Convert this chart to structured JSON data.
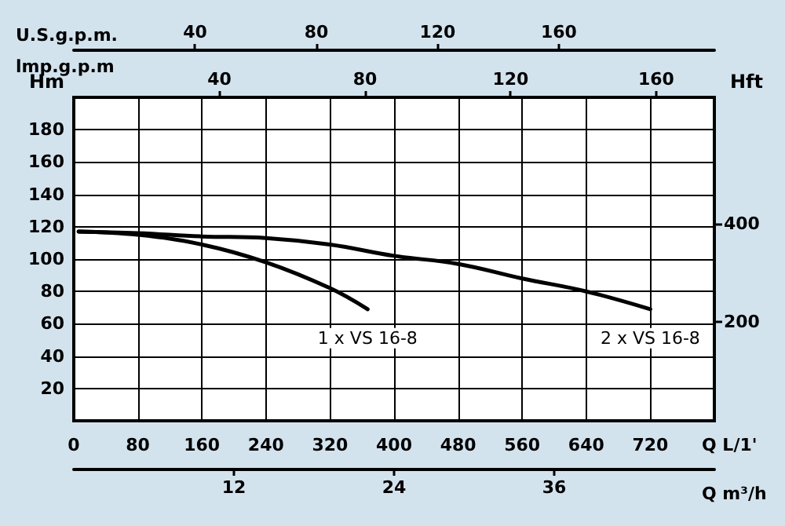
{
  "chart_data": {
    "type": "line",
    "xlabel": "Q L/1'",
    "ylabel": "Hm",
    "y2label": "Hft",
    "x2label": "U.S.g.p.m.",
    "xlim": [
      0,
      800
    ],
    "xticks": [
      {
        "value": 0,
        "label": "0"
      },
      80,
      160,
      240,
      320,
      400,
      480,
      560,
      640,
      720
    ],
    "ylim": [
      0,
      200
    ],
    "yticks": [
      20,
      40,
      60,
      80,
      100,
      120,
      140,
      160,
      180
    ],
    "y2lim": [
      0,
      656.2
    ],
    "y2ticks": [
      200,
      400
    ],
    "x2lim": [
      0,
      211.3
    ],
    "x2ticks": [
      40,
      80,
      120,
      160
    ],
    "annotations": [
      "lmp.g.p.m",
      "40",
      "80",
      "120",
      "160",
      "Q m³/h",
      "12",
      "24",
      "36"
    ],
    "grid": true,
    "legend": false,
    "series": [
      {
        "name": "1 x VS 16-8",
        "color": "#000000",
        "x": [
          6,
          80,
          160,
          240,
          320,
          367
        ],
        "values": [
          117,
          115,
          109,
          98,
          82,
          69
        ]
      },
      {
        "name": "2 x VS 16-8",
        "color": "#000000",
        "x": [
          6,
          80,
          160,
          240,
          320,
          400,
          480,
          560,
          640,
          720
        ],
        "values": [
          117,
          116,
          114,
          113,
          109,
          102,
          97,
          88,
          80,
          69
        ]
      }
    ]
  }
}
